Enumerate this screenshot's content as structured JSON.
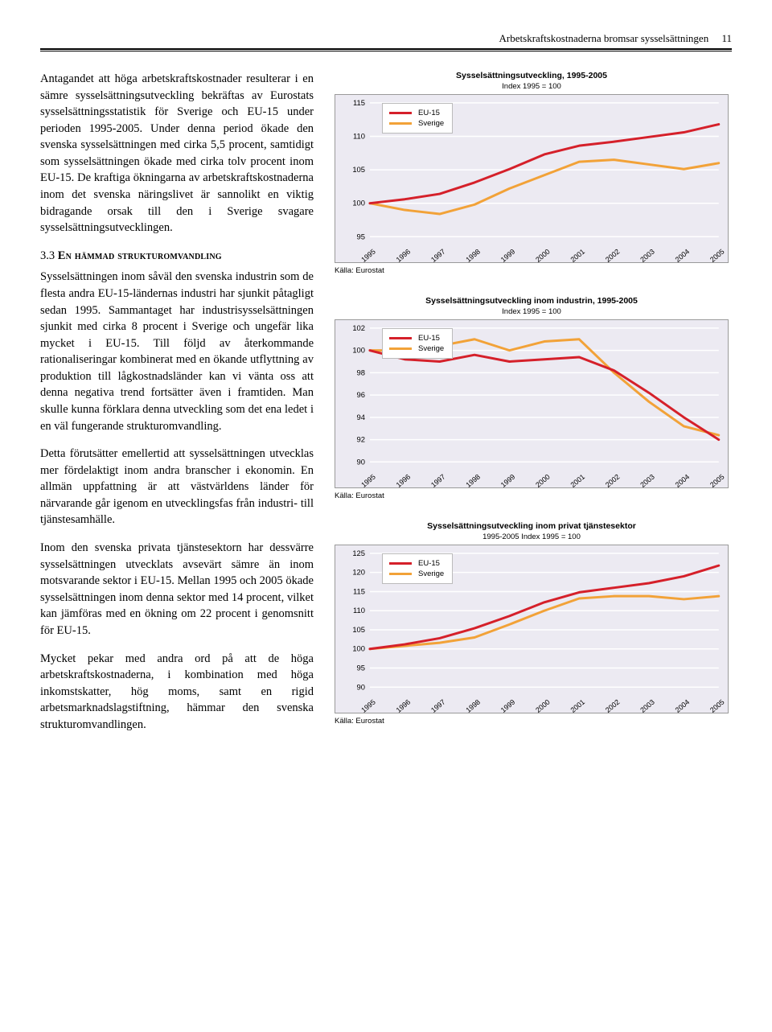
{
  "header": {
    "title": "Arbetskraftskostnaderna bromsar sysselsättningen",
    "page": "11"
  },
  "text": {
    "p1": "Antagandet att höga arbetskraftskostnader resulterar i en sämre sysselsättningsutveckling bekräftas av Eurostats sysselsättningsstatistik för Sverige och EU-15 under perioden 1995-2005. Under denna period ökade den svenska sysselsättningen med cirka 5,5 procent, samtidigt som sysselsättningen ökade med cirka tolv procent inom EU-15. De kraftiga ökningarna av arbetskraftskostnaderna inom det svenska näringslivet är sannolikt en viktig bidragande orsak till den i Sverige svagare sysselsättningsutvecklingen.",
    "h33_num": "3.3 ",
    "h33_cap": "En hämmad strukturomvandling",
    "p2": "Sysselsättningen inom såväl den svenska industrin som de flesta andra EU-15-ländernas industri har sjunkit påtagligt sedan 1995. Sammantaget har industrisysselsättningen sjunkit med cirka 8 procent i Sverige och ungefär lika mycket i EU-15. Till följd av återkommande rationaliseringar kombinerat med en ökande utflyttning av produktion till lågkostnadsländer kan vi vänta oss att denna negativa trend fortsätter även i framtiden. Man skulle kunna förklara denna utveckling som det ena ledet i en väl fungerande strukturomvandling.",
    "p3": "Detta förutsätter emellertid att sysselsättningen utvecklas mer fördelaktigt inom andra branscher i ekonomin. En allmän uppfattning är att västvärldens länder för närvarande går igenom en utvecklingsfas från industri- till tjänstesamhälle.",
    "p4": "Inom den svenska privata tjänstesektorn har dessvärre sysselsättningen utvecklats avsevärt sämre än inom motsvarande sektor i EU-15. Mellan 1995 och 2005 ökade sysselsättningen inom denna sektor med 14 procent, vilket kan jämföras med en ökning om 22 procent i genomsnitt för EU-15.",
    "p5": "Mycket pekar med andra ord på att de höga arbetskraftskostnaderna, i kombination med höga inkomstskatter, hög moms, samt en rigid arbetsmarknadslagstiftning, hämmar den svenska strukturomvandlingen."
  },
  "years": [
    "1995",
    "1996",
    "1997",
    "1998",
    "1999",
    "2000",
    "2001",
    "2002",
    "2003",
    "2004",
    "2005"
  ],
  "colors": {
    "eu15": "#d5202a",
    "sverige": "#f2a238",
    "grid": "#ffffff",
    "plot_bg": "#eceaf2",
    "axis": "#9a9a9a"
  },
  "legend": {
    "eu15": "EU-15",
    "sverige": "Sverige"
  },
  "source": "Källa: Eurostat",
  "chart1": {
    "title": "Sysselsättningsutveckling, 1995-2005",
    "subtitle": "Index 1995 = 100",
    "ylim": [
      95,
      115
    ],
    "ystep": 5,
    "eu15": [
      100,
      100.6,
      101.4,
      103.1,
      105.1,
      107.3,
      108.6,
      109.2,
      109.9,
      110.6,
      111.8
    ],
    "sverige": [
      100,
      99.0,
      98.4,
      99.8,
      102.2,
      104.2,
      106.2,
      106.5,
      105.8,
      105.1,
      106.0
    ]
  },
  "chart2": {
    "title": "Sysselsättningsutveckling inom industrin, 1995-2005",
    "subtitle": "Index 1995 = 100",
    "ylim": [
      90,
      102
    ],
    "ystep": 2,
    "eu15": [
      100,
      99.2,
      99.0,
      99.6,
      99.0,
      99.2,
      99.4,
      98.2,
      96.2,
      94.0,
      92.0
    ],
    "sverige": [
      100,
      100.0,
      100.4,
      101.0,
      100.0,
      100.8,
      101.0,
      98.0,
      95.4,
      93.2,
      92.4
    ]
  },
  "chart3": {
    "title": "Sysselsättningsutveckling inom privat tjänstesektor",
    "subtitle": "1995-2005\nIndex 1995 = 100",
    "ylim": [
      90,
      125
    ],
    "ystep": 5,
    "eu15": [
      100,
      101.2,
      102.8,
      105.4,
      108.6,
      112.2,
      114.8,
      116.0,
      117.2,
      119.0,
      121.8
    ],
    "sverige": [
      100,
      100.8,
      101.6,
      103.0,
      106.4,
      110.0,
      113.2,
      113.8,
      113.8,
      113.0,
      113.8
    ]
  }
}
